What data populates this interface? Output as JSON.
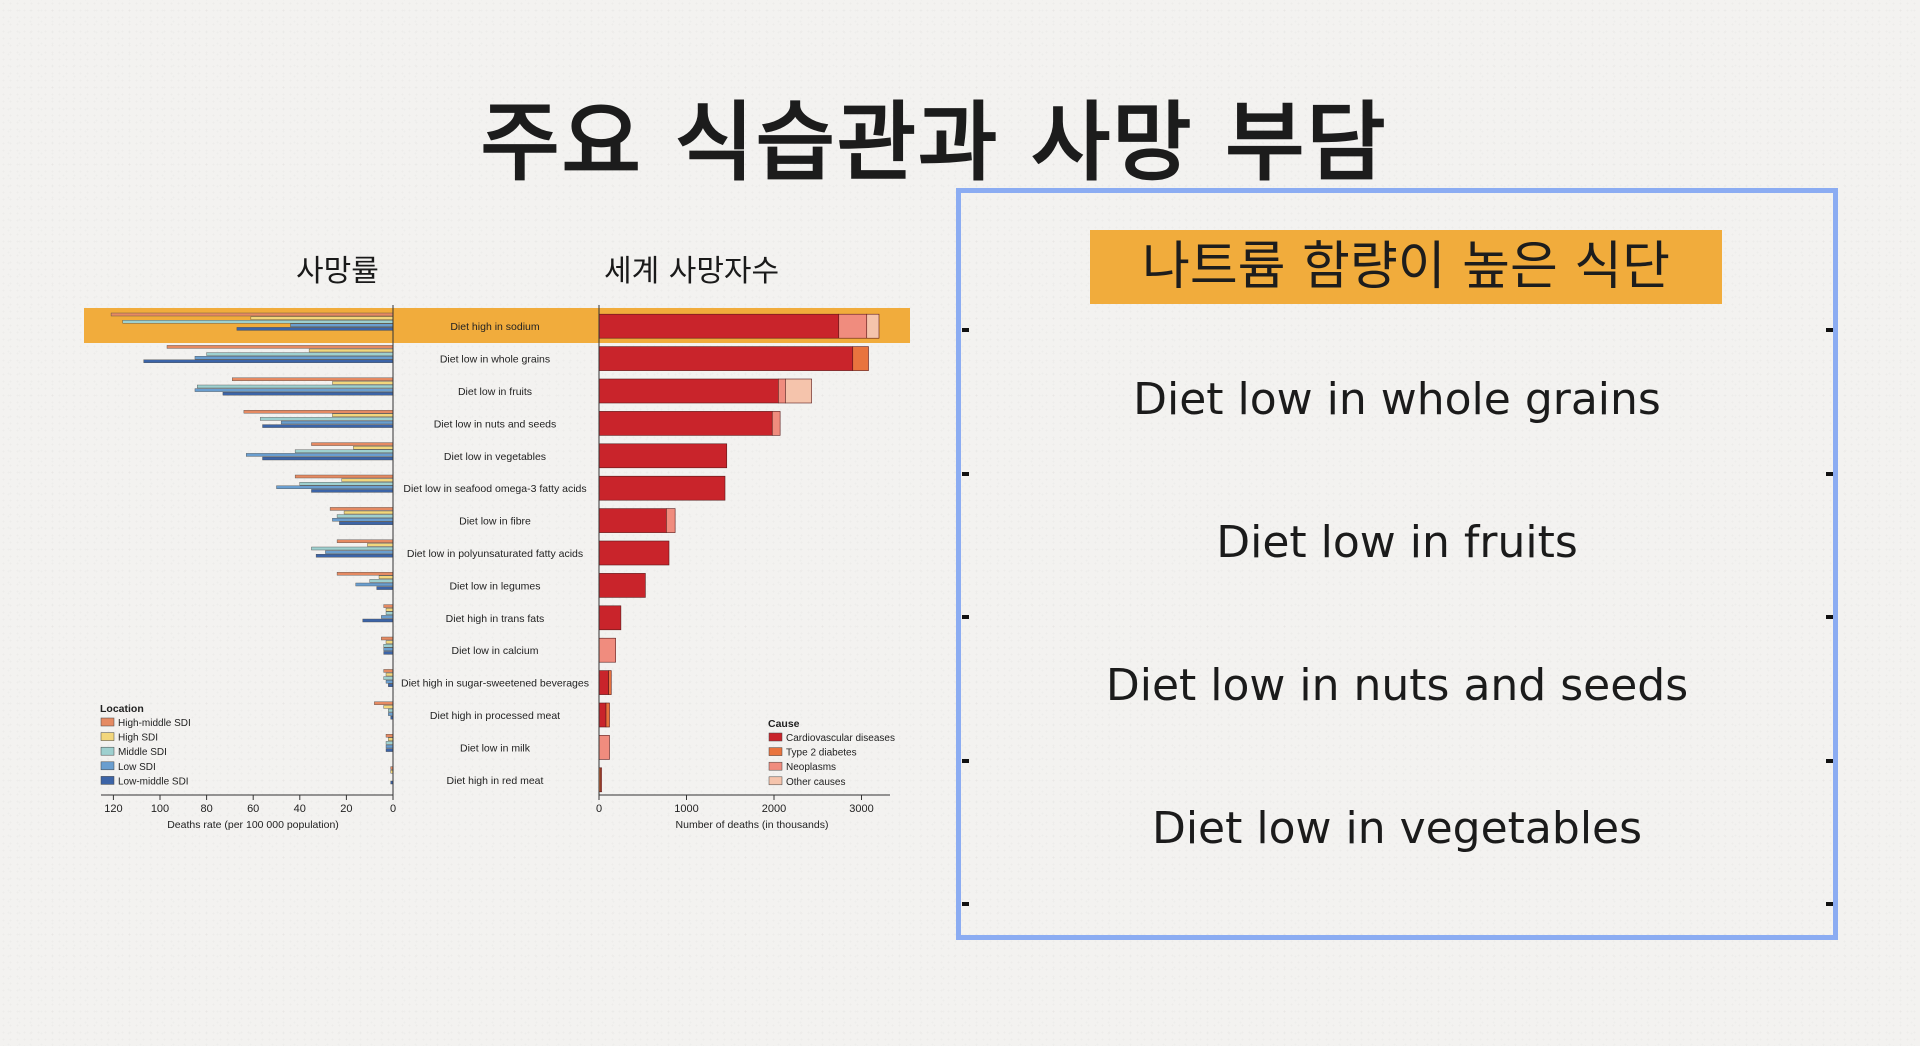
{
  "title": "주요 식습관과 사망 부담",
  "left_label": "사망률",
  "right_label": "세계 사망자수",
  "panel": {
    "heading": "나트륨 함량이 높은 식단",
    "items": [
      "Diet low in whole grains",
      "Diet low in fruits",
      "Diet low in nuts and seeds",
      "Diet low in vegetables"
    ]
  },
  "colors": {
    "highlight": "#f1ac3c",
    "panel_border": "#8bacf2",
    "sdi": [
      "#e58a62",
      "#f2d67c",
      "#9ed0cf",
      "#6a9ecf",
      "#3c64a7"
    ],
    "cause": [
      "#c9242b",
      "#e9743e",
      "#f08c7e",
      "#f5c4ac"
    ]
  },
  "chart_data": [
    {
      "type": "bar",
      "orientation": "horizontal-reversed",
      "xlabel": "Deaths rate (per 100 000 population)",
      "xlim": [
        0,
        125
      ],
      "xticks": [
        120,
        100,
        80,
        60,
        40,
        20,
        0
      ],
      "legend_title": "Location",
      "legend_position": "bottom-left",
      "categories": [
        "Diet high in sodium",
        "Diet low in whole grains",
        "Diet low in fruits",
        "Diet low in nuts and seeds",
        "Diet low in vegetables",
        "Diet low in seafood omega-3 fatty acids",
        "Diet low in fibre",
        "Diet low in polyunsaturated fatty acids",
        "Diet low in legumes",
        "Diet high in trans fats",
        "Diet low in calcium",
        "Diet high in sugar-sweetened beverages",
        "Diet high in processed meat",
        "Diet low in milk",
        "Diet high in red meat"
      ],
      "series": [
        {
          "name": "High-middle SDI",
          "values": [
            121,
            97,
            69,
            64,
            35,
            42,
            27,
            24,
            24,
            4,
            5,
            4,
            8,
            3,
            1
          ]
        },
        {
          "name": "High SDI",
          "values": [
            61,
            36,
            26,
            26,
            17,
            22,
            21,
            11,
            6,
            3,
            3,
            3,
            4,
            2,
            1
          ]
        },
        {
          "name": "Middle SDI",
          "values": [
            116,
            80,
            84,
            57,
            42,
            40,
            24,
            35,
            10,
            3,
            4,
            4,
            2,
            3,
            0
          ]
        },
        {
          "name": "Low SDI",
          "values": [
            44,
            85,
            85,
            48,
            63,
            50,
            26,
            29,
            16,
            5,
            4,
            3,
            2,
            3,
            0
          ]
        },
        {
          "name": "Low-middle SDI",
          "values": [
            67,
            107,
            73,
            56,
            56,
            35,
            23,
            33,
            7,
            13,
            4,
            2,
            1,
            3,
            1
          ]
        }
      ]
    },
    {
      "type": "bar",
      "orientation": "horizontal-stacked",
      "xlabel": "Number of deaths (in thousands)",
      "xlim": [
        0,
        3300
      ],
      "xticks": [
        0,
        1000,
        2000,
        3000
      ],
      "legend_title": "Cause",
      "legend_position": "bottom-right",
      "categories": [
        "Diet high in sodium",
        "Diet low in whole grains",
        "Diet low in fruits",
        "Diet low in nuts and seeds",
        "Diet low in vegetables",
        "Diet low in seafood omega-3 fatty acids",
        "Diet low in fibre",
        "Diet low in polyunsaturated fatty acids",
        "Diet low in legumes",
        "Diet high in trans fats",
        "Diet low in calcium",
        "Diet high in sugar-sweetened beverages",
        "Diet high in processed meat",
        "Diet low in milk",
        "Diet high in red meat"
      ],
      "series": [
        {
          "name": "Cardiovascular diseases",
          "values": [
            2740,
            2900,
            2050,
            1980,
            1460,
            1440,
            770,
            800,
            530,
            250,
            0,
            110,
            80,
            0,
            0
          ]
        },
        {
          "name": "Type 2 diabetes",
          "values": [
            0,
            180,
            0,
            0,
            0,
            0,
            0,
            0,
            0,
            0,
            0,
            30,
            40,
            0,
            20
          ]
        },
        {
          "name": "Neoplasms",
          "values": [
            320,
            0,
            80,
            90,
            0,
            0,
            100,
            0,
            0,
            0,
            190,
            0,
            0,
            120,
            10
          ]
        },
        {
          "name": "Other causes",
          "values": [
            140,
            0,
            300,
            0,
            0,
            0,
            0,
            0,
            0,
            0,
            0,
            0,
            0,
            0,
            0
          ]
        }
      ]
    }
  ]
}
